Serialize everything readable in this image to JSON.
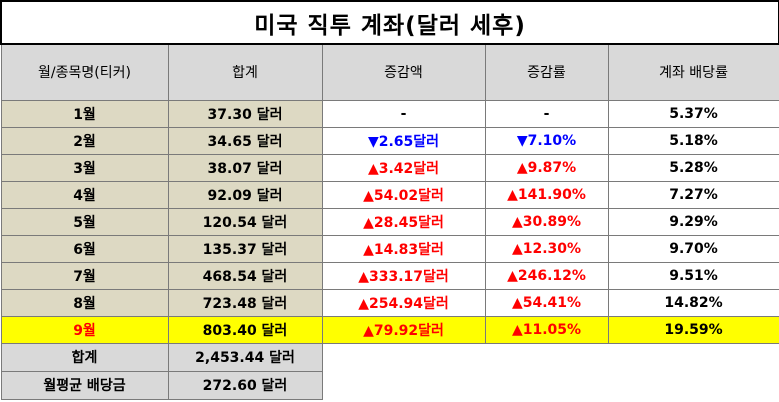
{
  "title": "미국 직투 계좌(달러 세후)",
  "headers": [
    "월/종목명(티커)",
    "합계",
    "증감액",
    "증감률",
    "계좌 배당률"
  ],
  "colors": {
    "up": "#ff0000",
    "down": "#0000ff",
    "highlight": "#ffff00",
    "row_bg": "#ddd9c3",
    "header_bg": "#d9d9d9"
  },
  "rows": [
    {
      "month": "1월",
      "total": "37.30 달러",
      "change": "-",
      "rate": "-",
      "yield": "5.37%",
      "dir": "none"
    },
    {
      "month": "2월",
      "total": "34.65 달러",
      "change": "▼2.65달러",
      "rate": "▼7.10%",
      "yield": "5.18%",
      "dir": "down"
    },
    {
      "month": "3월",
      "total": "38.07 달러",
      "change": "▲3.42달러",
      "rate": "▲9.87%",
      "yield": "5.28%",
      "dir": "up"
    },
    {
      "month": "4월",
      "total": "92.09 달러",
      "change": "▲54.02달러",
      "rate": "▲141.90%",
      "yield": "7.27%",
      "dir": "up"
    },
    {
      "month": "5월",
      "total": "120.54 달러",
      "change": "▲28.45달러",
      "rate": "▲30.89%",
      "yield": "9.29%",
      "dir": "up"
    },
    {
      "month": "6월",
      "total": "135.37 달러",
      "change": "▲14.83달러",
      "rate": "▲12.30%",
      "yield": "9.70%",
      "dir": "up"
    },
    {
      "month": "7월",
      "total": "468.54 달러",
      "change": "▲333.17달러",
      "rate": "▲246.12%",
      "yield": "9.51%",
      "dir": "up"
    },
    {
      "month": "8월",
      "total": "723.48 달러",
      "change": "▲254.94달러",
      "rate": "▲54.41%",
      "yield": "14.82%",
      "dir": "up"
    },
    {
      "month": "9월",
      "total": "803.40 달러",
      "change": "▲79.92달러",
      "rate": "▲11.05%",
      "yield": "19.59%",
      "dir": "up",
      "highlight": true
    }
  ],
  "summary": [
    {
      "label": "합계",
      "value": "2,453.44 달러"
    },
    {
      "label": "월평균 배당금",
      "value": "272.60 달러"
    }
  ]
}
